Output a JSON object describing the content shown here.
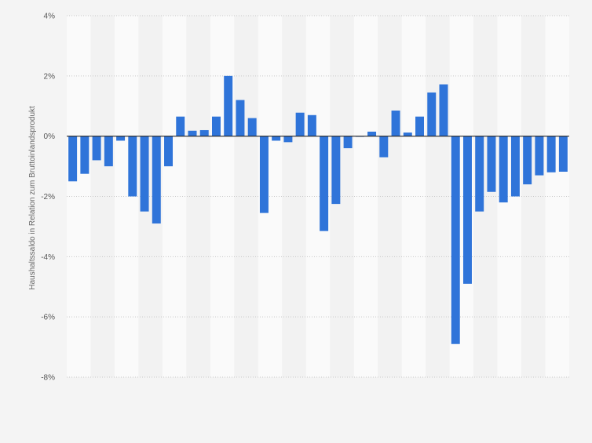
{
  "chart_data": {
    "type": "bar",
    "ylabel": "Haushaltssaldo in Relation zum Bruttoinlandsprodukt",
    "ylim": [
      -8,
      4
    ],
    "yticks": [
      4,
      2,
      0,
      -2,
      -4,
      -6,
      -8
    ],
    "ytick_labels": [
      "4%",
      "2%",
      "0%",
      "-2%",
      "-4%",
      "-6%",
      "-8%"
    ],
    "grid": true,
    "bar_color": "#2f74d9",
    "values": [
      -1.5,
      -1.25,
      -0.8,
      -1.0,
      -0.15,
      -2.0,
      -2.5,
      -2.9,
      -1.0,
      0.65,
      0.18,
      0.2,
      0.65,
      2.0,
      1.2,
      0.6,
      -2.55,
      -0.15,
      -0.2,
      0.78,
      0.7,
      -3.15,
      -2.25,
      -0.4,
      -0.02,
      0.15,
      -0.7,
      0.85,
      0.12,
      0.65,
      1.45,
      1.72,
      -6.9,
      -4.9,
      -2.5,
      -1.85,
      -2.2,
      -2.0,
      -1.6,
      -1.3,
      -1.2,
      -1.18
    ]
  }
}
